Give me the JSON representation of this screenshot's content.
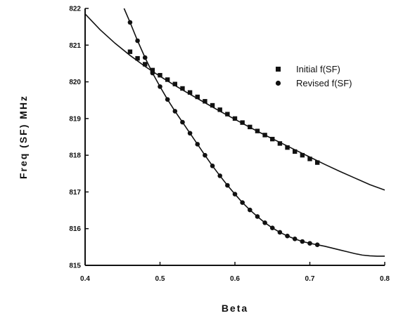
{
  "chart_data": {
    "type": "line",
    "title": "",
    "xlabel": "Beta",
    "ylabel": "Freq (SF) MHz",
    "xlim": [
      0.4,
      0.8
    ],
    "ylim": [
      815,
      822
    ],
    "x_ticks": [
      0.4,
      0.5,
      0.6,
      0.7,
      0.8
    ],
    "x_tick_labels": [
      "0.4",
      "0.5",
      "0.6",
      "0.7",
      "0.8"
    ],
    "y_ticks": [
      815,
      816,
      817,
      818,
      819,
      820,
      821,
      822
    ],
    "y_tick_labels": [
      "815",
      "816",
      "817",
      "818",
      "819",
      "820",
      "821",
      "822"
    ],
    "grid": false,
    "legend_position": "top-right",
    "colors": {
      "ink": "#111111",
      "background": "#ffffff"
    },
    "series": [
      {
        "name": "Initial f(SF)",
        "marker": "square",
        "curve_x": [
          0.4,
          0.42,
          0.44,
          0.46,
          0.48,
          0.5,
          0.52,
          0.54,
          0.56,
          0.58,
          0.6,
          0.62,
          0.64,
          0.66,
          0.68,
          0.7,
          0.72,
          0.74,
          0.76,
          0.78,
          0.8
        ],
        "curve_y": [
          821.85,
          821.42,
          821.05,
          820.72,
          820.42,
          820.15,
          819.9,
          819.66,
          819.43,
          819.2,
          818.98,
          818.76,
          818.55,
          818.35,
          818.15,
          817.95,
          817.75,
          817.56,
          817.38,
          817.2,
          817.05
        ],
        "marker_x": [
          0.46,
          0.47,
          0.48,
          0.49,
          0.5,
          0.51,
          0.52,
          0.53,
          0.54,
          0.55,
          0.56,
          0.57,
          0.58,
          0.59,
          0.6,
          0.61,
          0.62,
          0.63,
          0.64,
          0.65,
          0.66,
          0.67,
          0.68,
          0.69,
          0.7,
          0.71
        ],
        "marker_y": [
          820.82,
          820.64,
          820.48,
          820.32,
          820.18,
          820.06,
          819.94,
          819.82,
          819.71,
          819.59,
          819.47,
          819.36,
          819.24,
          819.12,
          819.0,
          818.89,
          818.77,
          818.66,
          818.55,
          818.44,
          818.32,
          818.21,
          818.1,
          818.0,
          817.9,
          817.8
        ]
      },
      {
        "name": "Revised f(SF)",
        "marker": "circle",
        "curve_x": [
          0.452,
          0.46,
          0.47,
          0.48,
          0.49,
          0.5,
          0.51,
          0.52,
          0.53,
          0.54,
          0.55,
          0.56,
          0.57,
          0.58,
          0.59,
          0.6,
          0.61,
          0.62,
          0.63,
          0.64,
          0.65,
          0.66,
          0.67,
          0.68,
          0.69,
          0.7,
          0.71,
          0.72,
          0.73,
          0.74,
          0.75,
          0.76,
          0.77,
          0.78,
          0.79,
          0.8
        ],
        "curve_y": [
          822.0,
          821.62,
          821.12,
          820.66,
          820.24,
          819.87,
          819.52,
          819.2,
          818.9,
          818.6,
          818.3,
          818.0,
          817.71,
          817.44,
          817.18,
          816.94,
          816.71,
          816.51,
          816.33,
          816.16,
          816.02,
          815.9,
          815.8,
          815.72,
          815.65,
          815.6,
          815.56,
          815.52,
          815.47,
          815.42,
          815.37,
          815.32,
          815.28,
          815.26,
          815.25,
          815.25
        ],
        "marker_x": [
          0.46,
          0.47,
          0.48,
          0.49,
          0.5,
          0.51,
          0.52,
          0.53,
          0.54,
          0.55,
          0.56,
          0.57,
          0.58,
          0.59,
          0.6,
          0.61,
          0.62,
          0.63,
          0.64,
          0.65,
          0.66,
          0.67,
          0.68,
          0.69,
          0.7,
          0.71
        ],
        "marker_y": [
          821.62,
          821.12,
          820.66,
          820.24,
          819.87,
          819.52,
          819.2,
          818.9,
          818.6,
          818.3,
          818.0,
          817.71,
          817.44,
          817.18,
          816.94,
          816.71,
          816.51,
          816.33,
          816.16,
          816.02,
          815.9,
          815.8,
          815.72,
          815.65,
          815.6,
          815.56
        ]
      }
    ]
  }
}
